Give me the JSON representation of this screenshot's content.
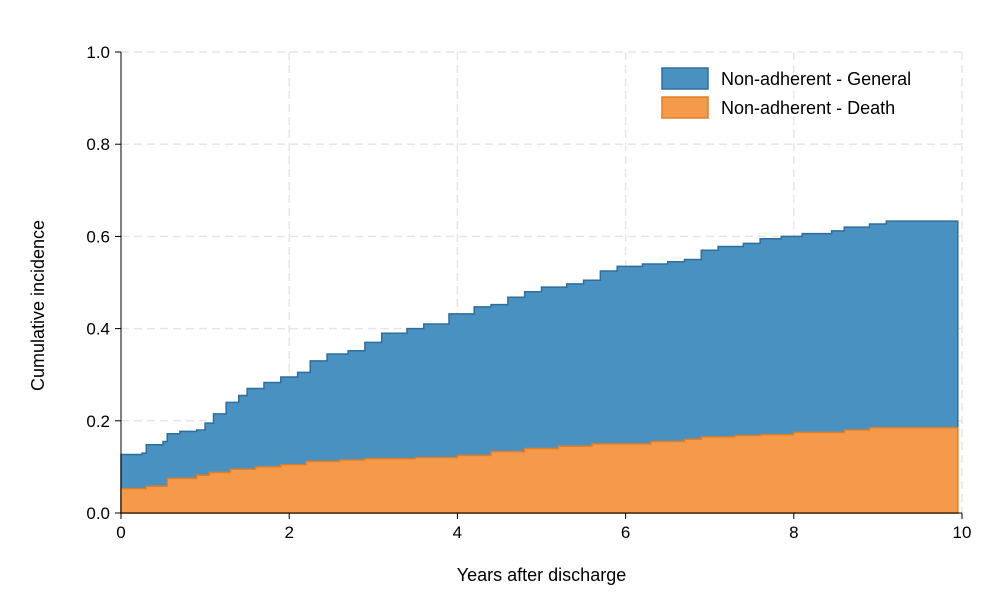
{
  "chart_data": {
    "type": "area",
    "xlabel": "Years after discharge",
    "ylabel": "Cumulative incidence",
    "xlim": [
      0,
      10
    ],
    "ylim": [
      0,
      1
    ],
    "x_ticks": [
      "0",
      "2",
      "4",
      "6",
      "8",
      "10"
    ],
    "y_ticks": [
      "0.0",
      "0.2",
      "0.4",
      "0.6",
      "0.8",
      "1.0"
    ],
    "stacked": true,
    "grid": true,
    "legend_position": "top-right",
    "series": [
      {
        "name": "Non-adherent - General",
        "color": "#4891c0",
        "edge_color": "#2f6e9b",
        "points": [
          [
            0,
            0.127
          ],
          [
            0.25,
            0.13
          ],
          [
            0.3,
            0.148
          ],
          [
            0.5,
            0.155
          ],
          [
            0.55,
            0.172
          ],
          [
            0.7,
            0.177
          ],
          [
            0.9,
            0.18
          ],
          [
            1.0,
            0.195
          ],
          [
            1.1,
            0.215
          ],
          [
            1.25,
            0.24
          ],
          [
            1.4,
            0.255
          ],
          [
            1.5,
            0.27
          ],
          [
            1.7,
            0.283
          ],
          [
            1.9,
            0.295
          ],
          [
            2.1,
            0.305
          ],
          [
            2.25,
            0.33
          ],
          [
            2.45,
            0.345
          ],
          [
            2.7,
            0.352
          ],
          [
            2.9,
            0.37
          ],
          [
            3.1,
            0.39
          ],
          [
            3.4,
            0.4
          ],
          [
            3.6,
            0.41
          ],
          [
            3.9,
            0.432
          ],
          [
            4.2,
            0.447
          ],
          [
            4.4,
            0.452
          ],
          [
            4.6,
            0.468
          ],
          [
            4.8,
            0.48
          ],
          [
            5.0,
            0.49
          ],
          [
            5.3,
            0.497
          ],
          [
            5.5,
            0.505
          ],
          [
            5.7,
            0.525
          ],
          [
            5.9,
            0.535
          ],
          [
            6.2,
            0.54
          ],
          [
            6.5,
            0.545
          ],
          [
            6.7,
            0.55
          ],
          [
            6.9,
            0.57
          ],
          [
            7.1,
            0.578
          ],
          [
            7.4,
            0.585
          ],
          [
            7.6,
            0.595
          ],
          [
            7.85,
            0.6
          ],
          [
            8.1,
            0.606
          ],
          [
            8.45,
            0.612
          ],
          [
            8.6,
            0.62
          ],
          [
            8.9,
            0.627
          ],
          [
            9.1,
            0.633
          ],
          [
            9.95,
            0.633
          ]
        ]
      },
      {
        "name": "Non-adherent - Death",
        "color": "#f5994a",
        "edge_color": "#e07f26",
        "points": [
          [
            0,
            0.053
          ],
          [
            0.3,
            0.058
          ],
          [
            0.55,
            0.075
          ],
          [
            0.9,
            0.082
          ],
          [
            1.05,
            0.088
          ],
          [
            1.3,
            0.095
          ],
          [
            1.6,
            0.1
          ],
          [
            1.9,
            0.105
          ],
          [
            2.2,
            0.112
          ],
          [
            2.6,
            0.115
          ],
          [
            2.9,
            0.118
          ],
          [
            3.5,
            0.12
          ],
          [
            4.0,
            0.125
          ],
          [
            4.4,
            0.133
          ],
          [
            4.8,
            0.14
          ],
          [
            5.2,
            0.145
          ],
          [
            5.6,
            0.15
          ],
          [
            6.3,
            0.155
          ],
          [
            6.7,
            0.16
          ],
          [
            6.9,
            0.165
          ],
          [
            7.3,
            0.168
          ],
          [
            7.6,
            0.17
          ],
          [
            8.0,
            0.175
          ],
          [
            8.6,
            0.18
          ],
          [
            8.9,
            0.185
          ],
          [
            9.95,
            0.185
          ]
        ]
      }
    ]
  }
}
